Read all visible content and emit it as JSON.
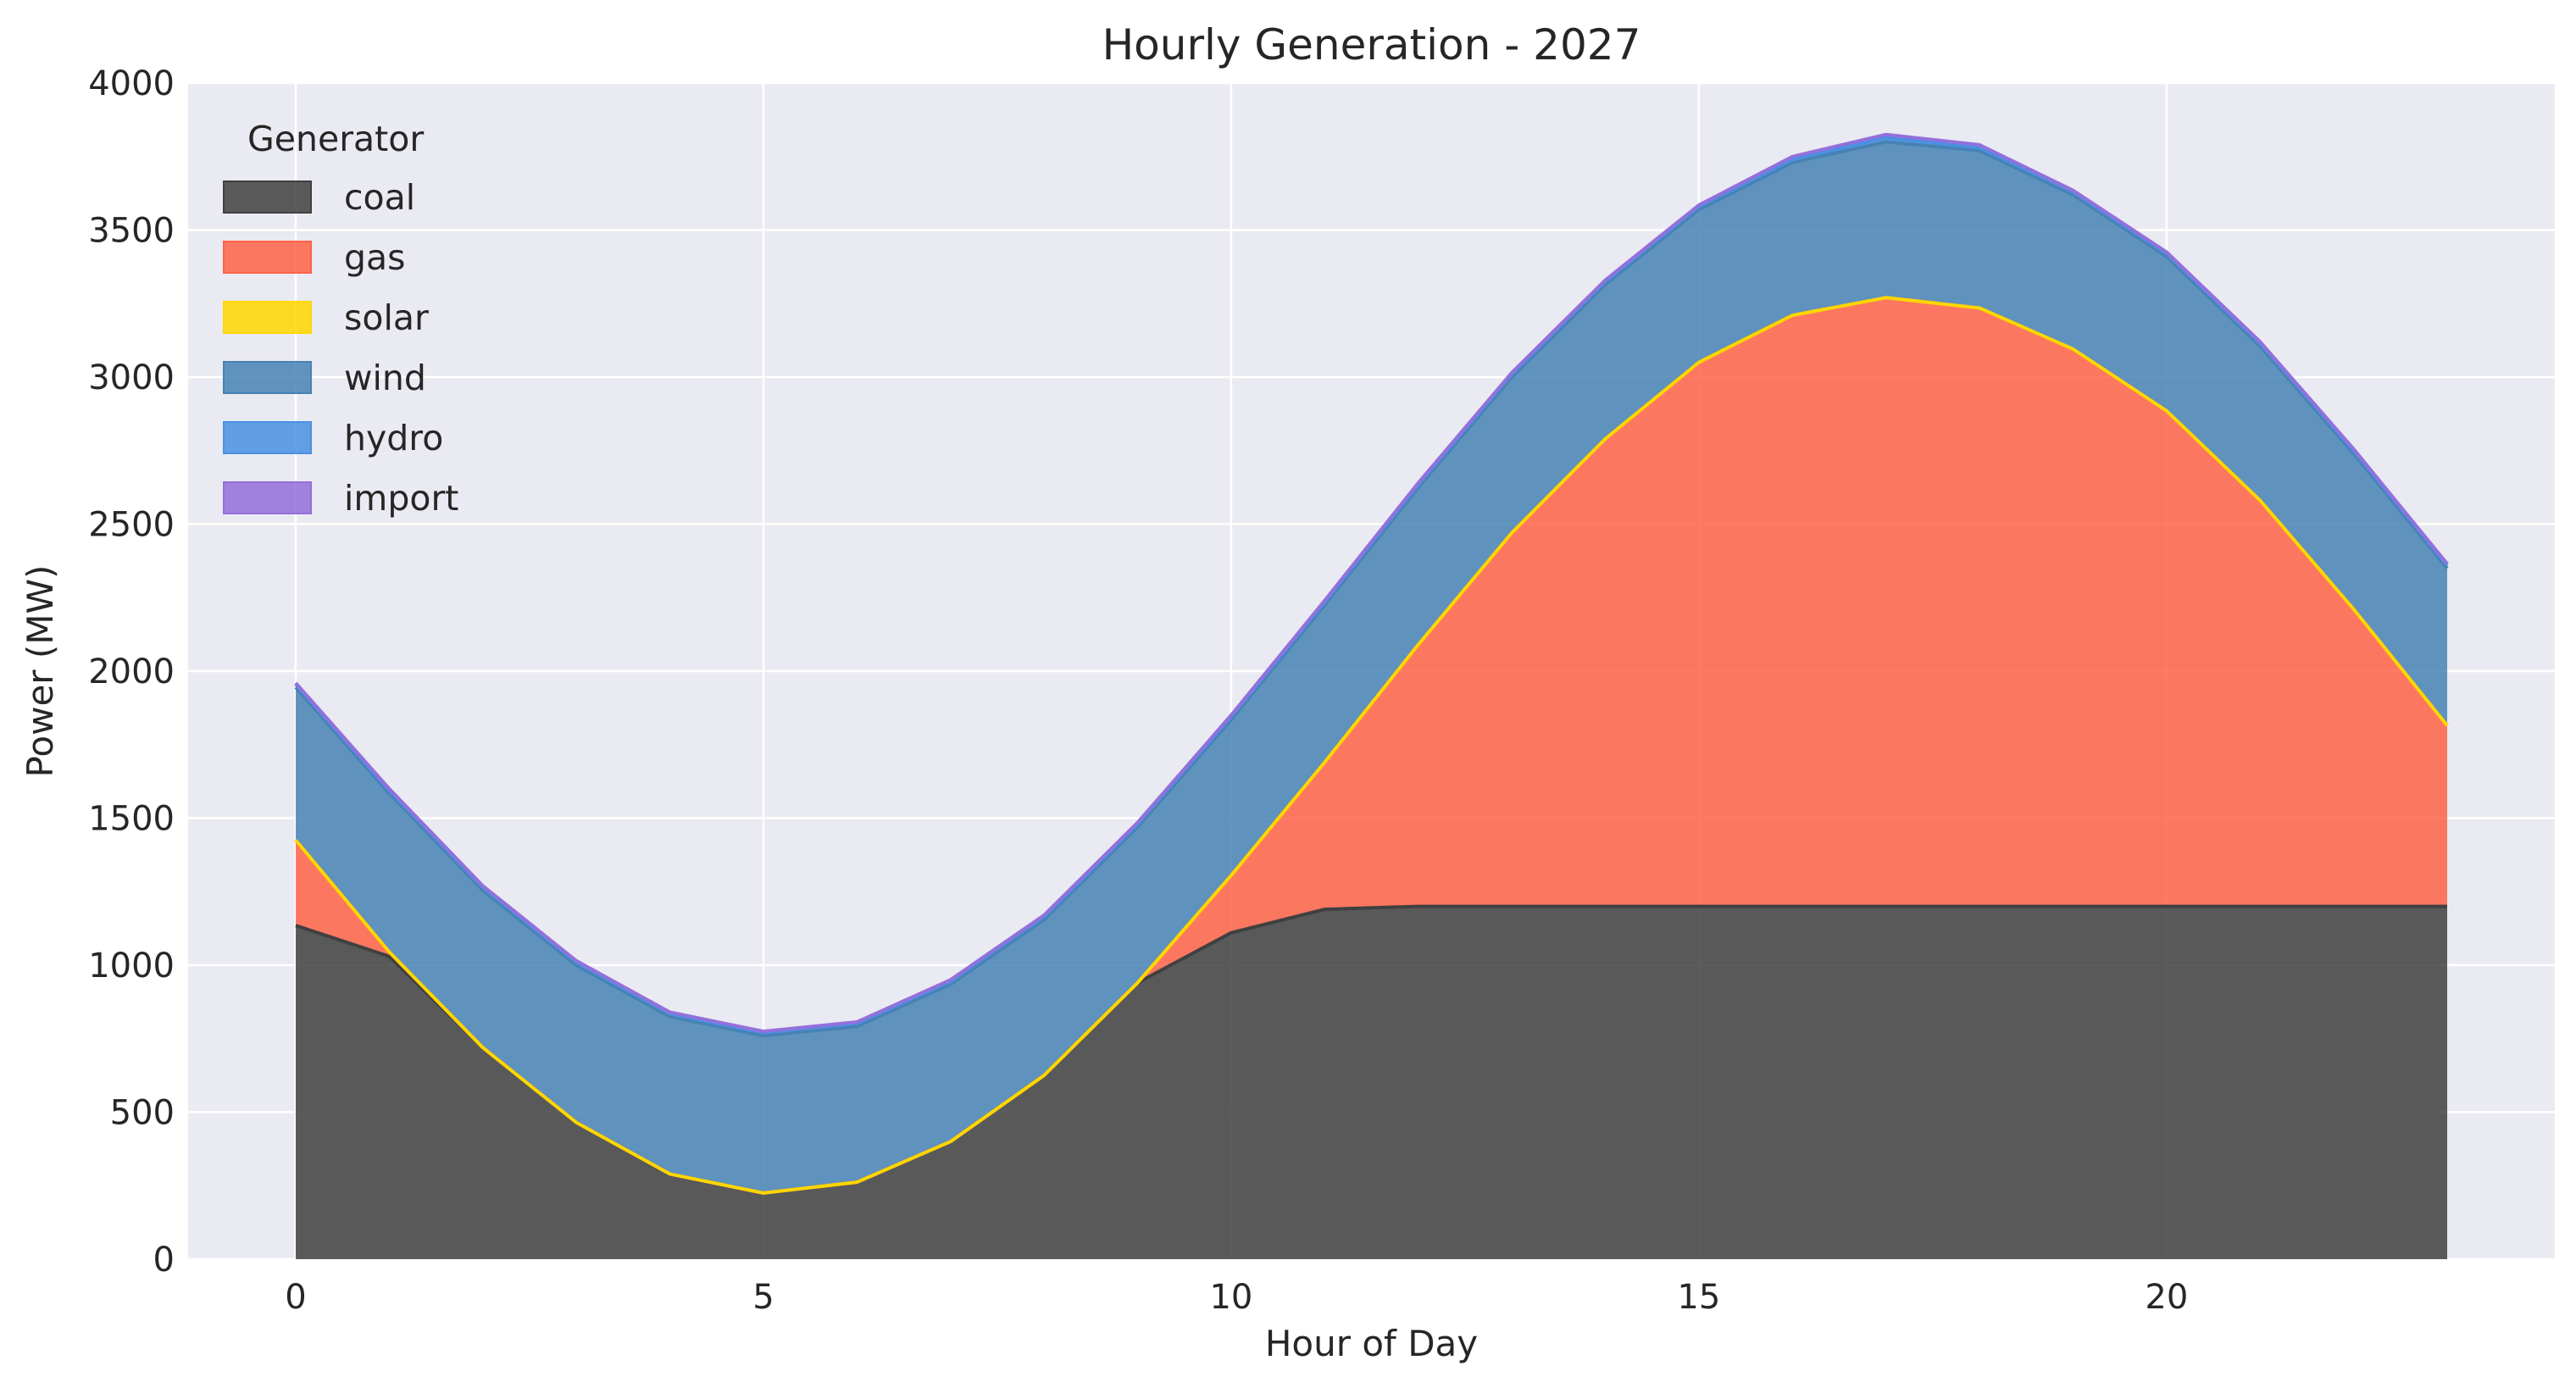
{
  "chart_data": {
    "type": "area",
    "stacked": true,
    "title": "Hourly Generation - 2027",
    "xlabel": "Hour of Day",
    "ylabel": "Power (MW)",
    "xlim": [
      -1.15,
      24.15
    ],
    "ylim": [
      0,
      4000
    ],
    "xticks": [
      0,
      5,
      10,
      15,
      20
    ],
    "yticks": [
      0,
      500,
      1000,
      1500,
      2000,
      2500,
      3000,
      3500,
      4000
    ],
    "grid": true,
    "legend": {
      "title": "Generator",
      "placement": "top-left"
    },
    "x": [
      0,
      1,
      2,
      3,
      4,
      5,
      6,
      7,
      8,
      9,
      10,
      11,
      12,
      13,
      14,
      15,
      16,
      17,
      18,
      19,
      20,
      21,
      22,
      23
    ],
    "series": [
      {
        "name": "coal",
        "color": "#404040",
        "values": [
          1135,
          1030,
          720,
          465,
          290,
          225,
          262,
          400,
          625,
          940,
          1110,
          1190,
          1200,
          1200,
          1200,
          1200,
          1200,
          1200,
          1200,
          1200,
          1200,
          1200,
          1200,
          1200
        ]
      },
      {
        "name": "gas",
        "color": "#ff6347",
        "values": [
          290,
          15,
          0,
          0,
          0,
          0,
          0,
          0,
          0,
          0,
          195,
          500,
          890,
          1270,
          1590,
          1850,
          2010,
          2070,
          2035,
          1895,
          1685,
          1380,
          1010,
          615
        ]
      },
      {
        "name": "solar",
        "color": "#ffd700",
        "values": [
          0,
          0,
          0,
          0,
          0,
          0,
          0,
          0,
          0,
          0,
          0,
          0,
          0,
          0,
          0,
          0,
          0,
          0,
          0,
          0,
          0,
          0,
          0,
          0
        ]
      },
      {
        "name": "wind",
        "color": "#4682b4",
        "values": [
          520,
          540,
          535,
          535,
          535,
          535,
          530,
          535,
          530,
          530,
          530,
          535,
          535,
          530,
          525,
          520,
          520,
          530,
          535,
          525,
          525,
          525,
          530,
          535
        ]
      },
      {
        "name": "hydro",
        "color": "#4a90e2",
        "values": [
          10,
          10,
          10,
          10,
          10,
          10,
          10,
          10,
          10,
          10,
          10,
          10,
          10,
          10,
          10,
          10,
          10,
          15,
          10,
          10,
          10,
          10,
          10,
          10
        ]
      },
      {
        "name": "import",
        "color": "#9370db",
        "values": [
          5,
          5,
          5,
          5,
          5,
          5,
          5,
          5,
          5,
          5,
          5,
          5,
          5,
          5,
          5,
          5,
          10,
          10,
          10,
          5,
          5,
          5,
          5,
          5
        ]
      }
    ]
  }
}
